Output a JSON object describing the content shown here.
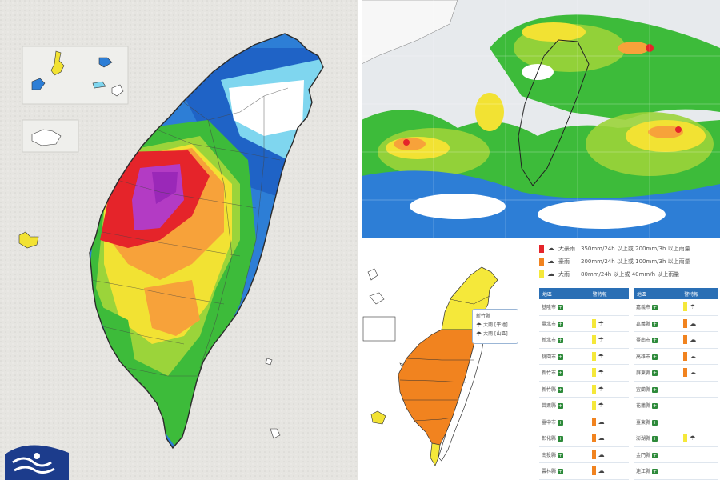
{
  "legend": [
    {
      "name": "大豪雨",
      "color": "#e5242a",
      "desc": "350mm/24h 以上或 200mm/3h 以上雨量",
      "icon": "heavy-cloud-rain-icon"
    },
    {
      "name": "豪雨",
      "color": "#f1831f",
      "desc": "200mm/24h 以上或 100mm/3h 以上雨量",
      "icon": "cloud-rain-icon"
    },
    {
      "name": "大雨",
      "color": "#f5e83a",
      "desc": "80mm/24h 以上或 40mm/h 以上雨量",
      "icon": "light-rain-icon"
    }
  ],
  "table_headers": {
    "region": "地區",
    "level": "警特報"
  },
  "left_table": [
    {
      "region": "基隆市",
      "level": ""
    },
    {
      "region": "臺北市",
      "level": "大雨"
    },
    {
      "region": "新北市",
      "level": "大雨"
    },
    {
      "region": "桃園市",
      "level": "大雨"
    },
    {
      "region": "新竹市",
      "level": "大雨"
    },
    {
      "region": "新竹縣",
      "level": "大雨"
    },
    {
      "region": "苗栗縣",
      "level": "大雨"
    },
    {
      "region": "臺中市",
      "level": "豪雨"
    },
    {
      "region": "彰化縣",
      "level": "豪雨"
    },
    {
      "region": "南投縣",
      "level": "豪雨"
    },
    {
      "region": "雲林縣",
      "level": "豪雨"
    }
  ],
  "right_table": [
    {
      "region": "嘉義市",
      "level": "大雨"
    },
    {
      "region": "嘉義縣",
      "level": "豪雨"
    },
    {
      "region": "臺南市",
      "level": "豪雨"
    },
    {
      "region": "高雄市",
      "level": "豪雨"
    },
    {
      "region": "屏東縣",
      "level": "豪雨"
    },
    {
      "region": "宜蘭縣",
      "level": ""
    },
    {
      "region": "花蓮縣",
      "level": ""
    },
    {
      "region": "臺東縣",
      "level": ""
    },
    {
      "region": "澎湖縣",
      "level": "大雨"
    },
    {
      "region": "金門縣",
      "level": ""
    },
    {
      "region": "連江縣",
      "level": ""
    }
  ],
  "tooltip": {
    "title": "新竹縣",
    "lines": [
      "大雨 [平地]",
      "大雨 [山區]"
    ]
  },
  "level_colors": {
    "大雨": "#f5e83a",
    "豪雨": "#f1831f",
    "大豪雨": "#e5242a"
  }
}
